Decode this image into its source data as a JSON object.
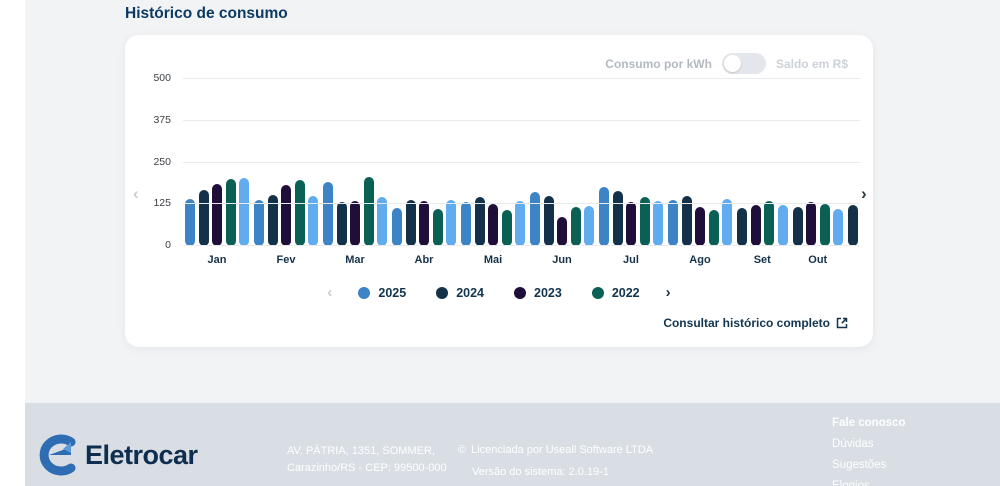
{
  "page": {
    "title": "Histórico de consumo"
  },
  "card": {
    "toggle": {
      "left_label": "Consumo por kWh",
      "right_label": "Saldo em R$",
      "selected": "Consumo por kWh"
    },
    "legend": {
      "items": [
        {
          "label": "2025",
          "color": "#3C84C6"
        },
        {
          "label": "2024",
          "color": "#133249"
        },
        {
          "label": "2023",
          "color": "#1F0D3A"
        },
        {
          "label": "2022",
          "color": "#0A6055"
        }
      ],
      "prev_icon": "‹",
      "next_icon": "›"
    },
    "link_label": "Consultar histórico completo",
    "prev_icon": "‹",
    "next_icon": "›"
  },
  "chart_data": {
    "type": "bar",
    "title": "Histórico de consumo",
    "unit": "kWh",
    "ylim": [
      0,
      500
    ],
    "yticks": [
      0,
      125,
      250,
      375,
      500
    ],
    "grid": true,
    "legend_position": "bottom",
    "categories": [
      "Jan",
      "Fev",
      "Mar",
      "Abr",
      "Mai",
      "Jun",
      "Jul",
      "Ago",
      "Set",
      "Out"
    ],
    "series": [
      {
        "name": "2025",
        "color": "#3C84C6",
        "values": [
          140,
          137,
          191,
          114,
          131,
          161,
          177,
          139,
          null,
          null
        ]
      },
      {
        "name": "2024",
        "color": "#133249",
        "values": [
          168,
          154,
          131,
          137,
          146,
          149,
          164,
          151,
          114,
          118
        ]
      },
      {
        "name": "2023",
        "color": "#1F0D3A",
        "values": [
          185,
          184,
          134,
          134,
          127,
          86,
          131,
          116,
          122,
          133
        ]
      },
      {
        "name": "2022",
        "color": "#0A6055",
        "values": [
          201,
          197,
          207,
          111,
          109,
          116,
          146,
          109,
          134,
          126
        ]
      },
      {
        "name": "",
        "color": "#60ACEE",
        "values": [
          205,
          149,
          147,
          137,
          136,
          121,
          134,
          141,
          124,
          111
        ]
      }
    ],
    "partial_next_bar": {
      "color": "#133249",
      "value": 122
    }
  },
  "footer": {
    "brand": "Eletrocar",
    "address_line1": "AV. PÁTRIA, 1351, SOMMER,",
    "address_line2": "Carazinho/RS - CEP: 99500-000",
    "license_line1": "Licenciada por Useall Software LTDA",
    "license_line2": "Versão do sistema: 2.0.19-1",
    "links": [
      "Fale conosco",
      "Dúvidas",
      "Sugestões",
      "Elogios"
    ]
  }
}
